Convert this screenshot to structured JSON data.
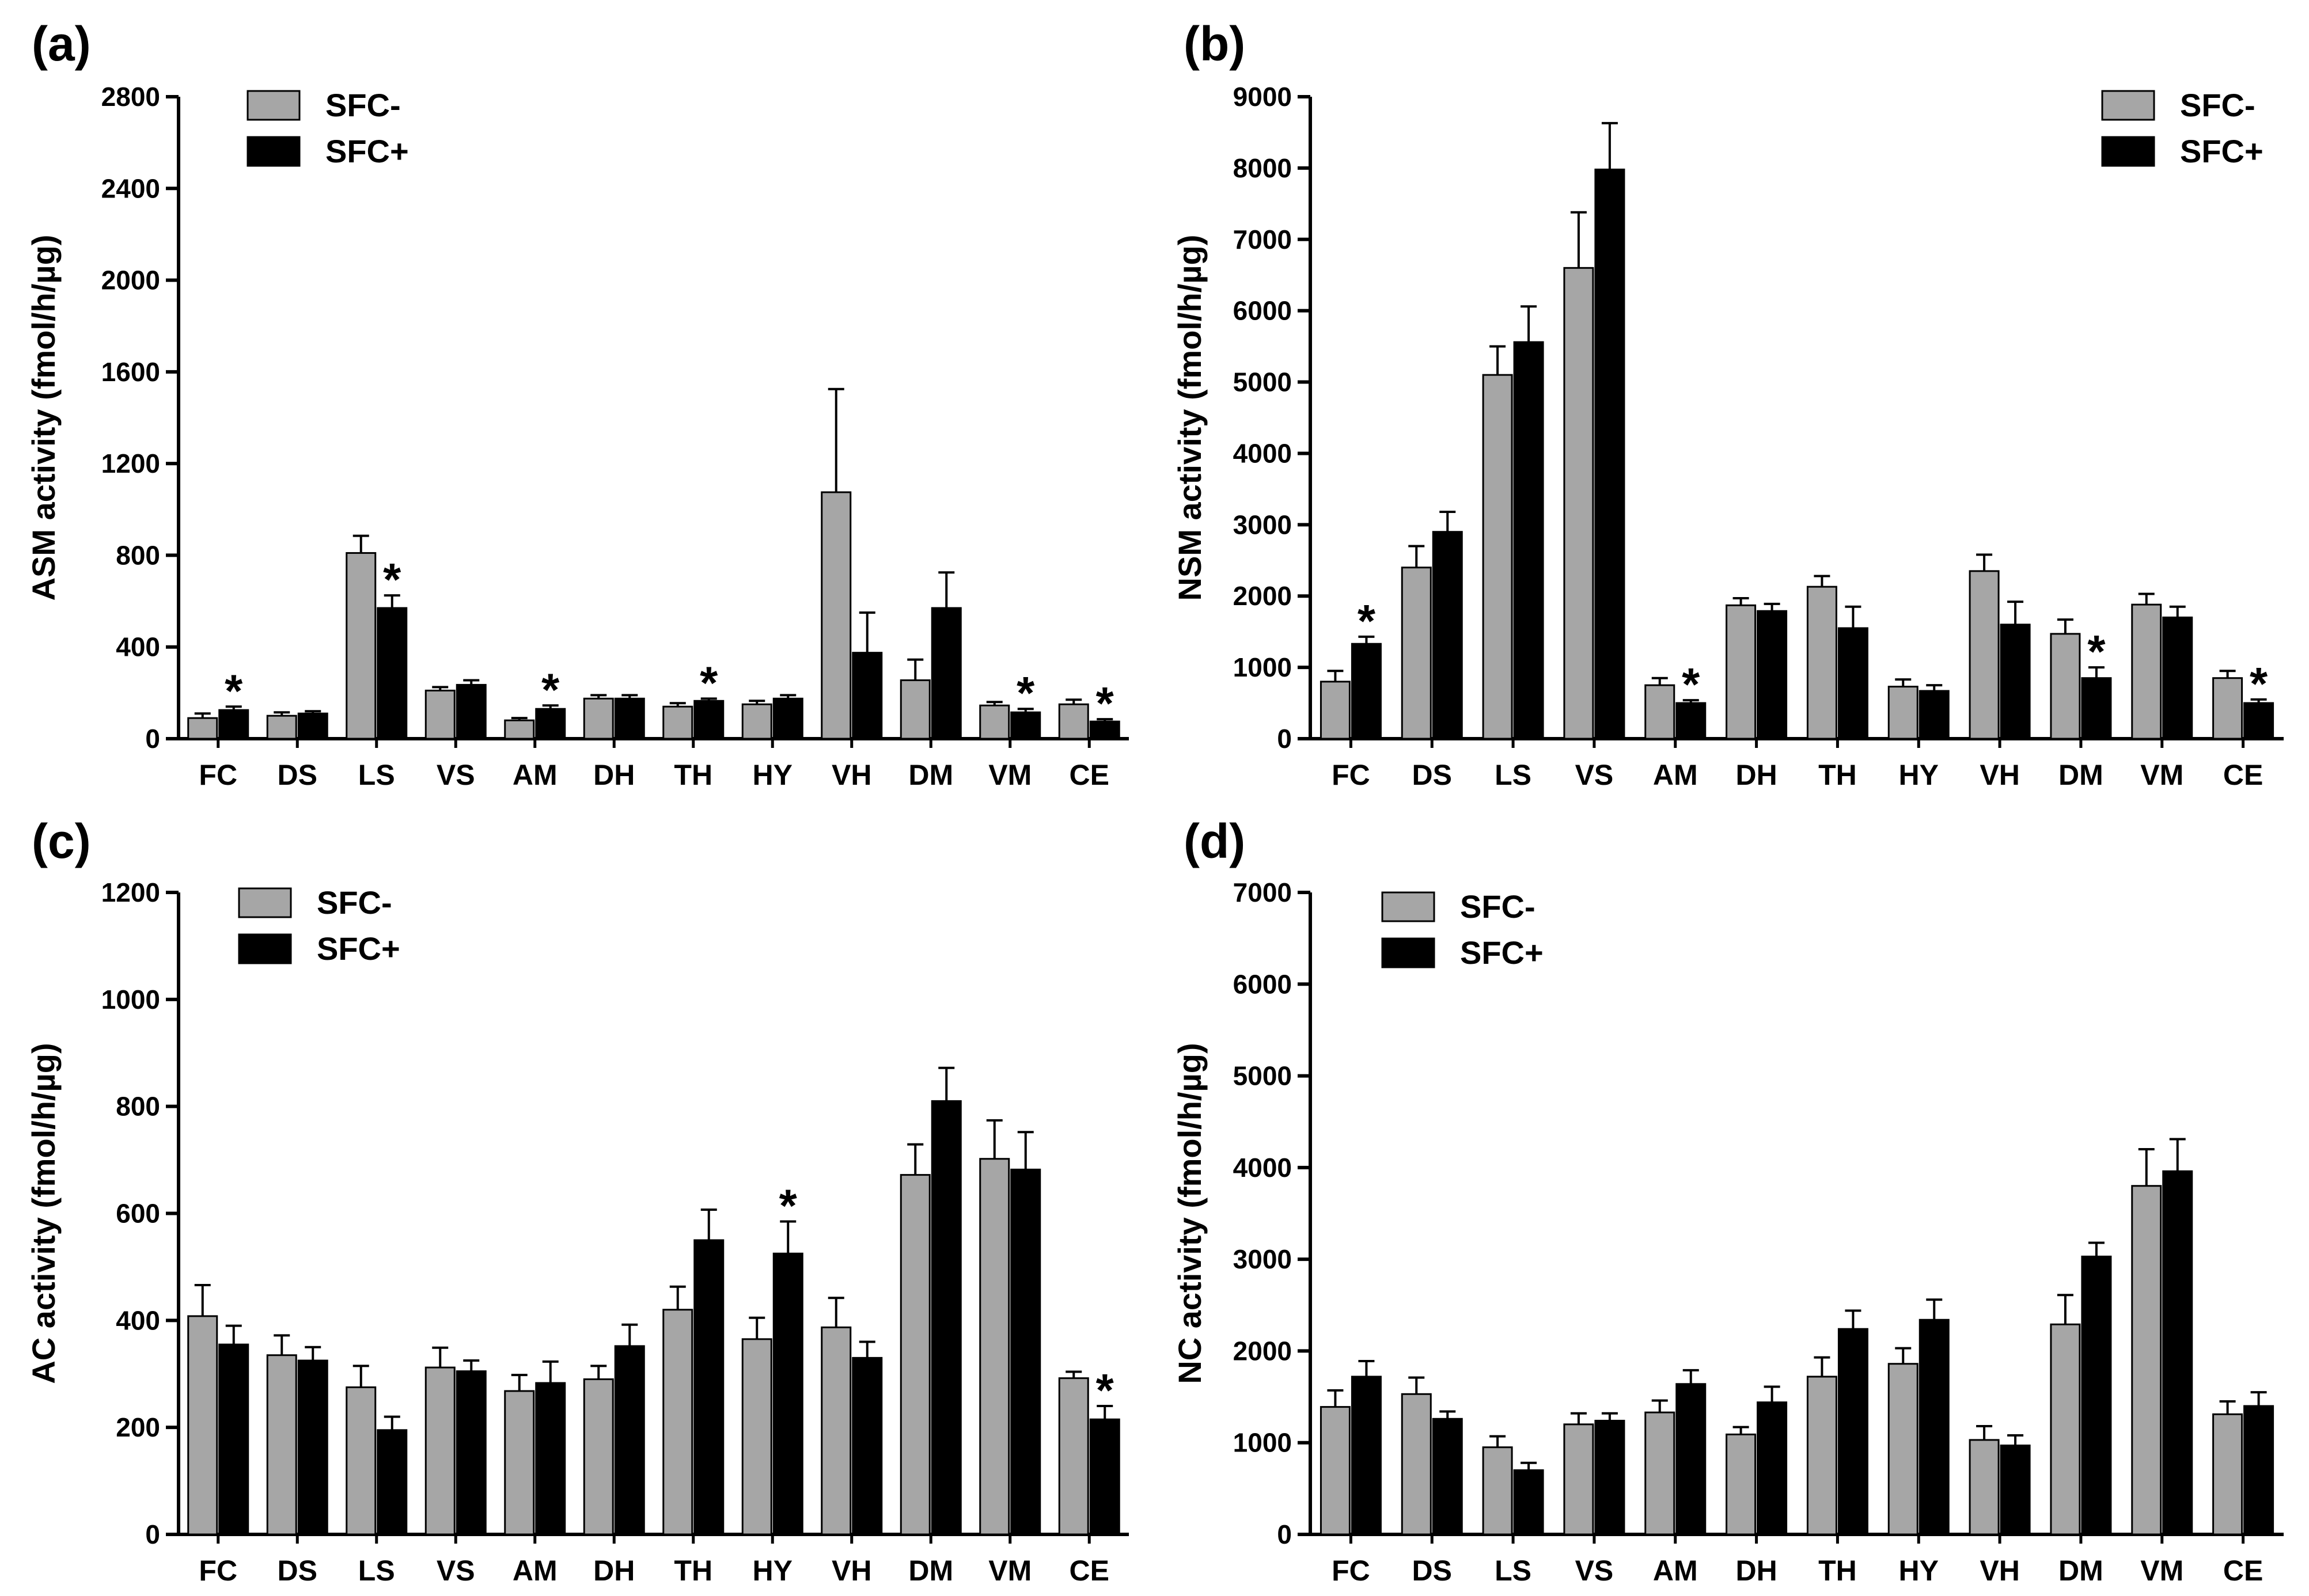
{
  "colors": {
    "sfc_minus": "#a6a6a6",
    "sfc_plus": "#000000",
    "axis": "#000000"
  },
  "chart_data": [
    {
      "type": "bar",
      "panel": "(a)",
      "title": "",
      "xlabel": "",
      "ylabel": "ASM activity  (fmol/h/µg)",
      "ylim": [
        0,
        2800
      ],
      "yticks": [
        0,
        400,
        800,
        1200,
        1600,
        2000,
        2400,
        2800
      ],
      "legend": {
        "position": "top-left",
        "entries": [
          "SFC-",
          "SFC+"
        ]
      },
      "categories": [
        "FC",
        "DS",
        "LS",
        "VS",
        "AM",
        "DH",
        "TH",
        "HY",
        "VH",
        "DM",
        "VM",
        "CE"
      ],
      "series": [
        {
          "name": "SFC-",
          "values": [
            90,
            100,
            810,
            210,
            80,
            175,
            140,
            150,
            1075,
            255,
            145,
            150
          ],
          "errors": [
            20,
            15,
            75,
            15,
            10,
            15,
            15,
            15,
            450,
            90,
            15,
            20
          ]
        },
        {
          "name": "SFC+",
          "values": [
            125,
            110,
            570,
            235,
            130,
            175,
            165,
            175,
            375,
            570,
            115,
            75
          ],
          "errors": [
            15,
            10,
            55,
            20,
            15,
            15,
            10,
            15,
            175,
            155,
            15,
            10
          ]
        }
      ],
      "significance": [
        true,
        false,
        true,
        false,
        true,
        false,
        true,
        false,
        false,
        false,
        true,
        true
      ],
      "significance_symbol": "*"
    },
    {
      "type": "bar",
      "panel": "(b)",
      "title": "",
      "xlabel": "",
      "ylabel": "NSM activity  (fmol/h/µg)",
      "ylim": [
        0,
        9000
      ],
      "yticks": [
        0,
        1000,
        2000,
        3000,
        4000,
        5000,
        6000,
        7000,
        8000,
        9000
      ],
      "legend": {
        "position": "top-right",
        "entries": [
          "SFC-",
          "SFC+"
        ]
      },
      "categories": [
        "FC",
        "DS",
        "LS",
        "VS",
        "AM",
        "DH",
        "TH",
        "HY",
        "VH",
        "DM",
        "VM",
        "CE"
      ],
      "series": [
        {
          "name": "SFC-",
          "values": [
            800,
            2400,
            5100,
            6600,
            750,
            1870,
            2130,
            730,
            2350,
            1470,
            1880,
            850
          ],
          "errors": [
            150,
            300,
            400,
            780,
            100,
            100,
            150,
            100,
            230,
            200,
            150,
            100
          ]
        },
        {
          "name": "SFC+",
          "values": [
            1330,
            2900,
            5560,
            7980,
            500,
            1790,
            1550,
            670,
            1600,
            850,
            1700,
            500
          ],
          "errors": [
            100,
            280,
            500,
            650,
            40,
            100,
            300,
            80,
            320,
            150,
            150,
            50
          ]
        }
      ],
      "significance": [
        true,
        false,
        false,
        false,
        true,
        false,
        false,
        false,
        false,
        true,
        false,
        true
      ],
      "significance_symbol": "*"
    },
    {
      "type": "bar",
      "panel": "(c)",
      "title": "",
      "xlabel": "",
      "ylabel": "AC activity  (fmol/h/µg)",
      "ylim": [
        0,
        1200
      ],
      "yticks": [
        0,
        200,
        400,
        600,
        800,
        1000,
        1200
      ],
      "legend": {
        "position": "top-left",
        "entries": [
          "SFC-",
          "SFC+"
        ]
      },
      "categories": [
        "FC",
        "DS",
        "LS",
        "VS",
        "AM",
        "DH",
        "TH",
        "HY",
        "VH",
        "DM",
        "VM",
        "CE"
      ],
      "series": [
        {
          "name": "SFC-",
          "values": [
            408,
            335,
            275,
            312,
            268,
            290,
            420,
            365,
            387,
            672,
            702,
            292
          ],
          "errors": [
            58,
            37,
            40,
            37,
            30,
            25,
            43,
            40,
            55,
            57,
            72,
            12
          ]
        },
        {
          "name": "SFC+",
          "values": [
            355,
            325,
            195,
            305,
            283,
            352,
            550,
            525,
            330,
            810,
            682,
            215
          ],
          "errors": [
            35,
            25,
            25,
            20,
            40,
            40,
            57,
            60,
            30,
            62,
            70,
            25
          ]
        }
      ],
      "significance": [
        false,
        false,
        false,
        false,
        false,
        false,
        false,
        true,
        false,
        false,
        false,
        true
      ],
      "significance_symbol": "*"
    },
    {
      "type": "bar",
      "panel": "(d)",
      "title": "",
      "xlabel": "",
      "ylabel": "NC activity  (fmol/h/µg)",
      "ylim": [
        0,
        7000
      ],
      "yticks": [
        0,
        1000,
        2000,
        3000,
        4000,
        5000,
        6000,
        7000
      ],
      "legend": {
        "position": "top-left",
        "entries": [
          "SFC-",
          "SFC+"
        ]
      },
      "categories": [
        "FC",
        "DS",
        "LS",
        "VS",
        "AM",
        "DH",
        "TH",
        "HY",
        "VH",
        "DM",
        "VM",
        "CE"
      ],
      "series": [
        {
          "name": "SFC-",
          "values": [
            1390,
            1530,
            950,
            1200,
            1330,
            1090,
            1720,
            1860,
            1030,
            2290,
            3800,
            1310
          ],
          "errors": [
            180,
            180,
            120,
            120,
            130,
            80,
            210,
            170,
            150,
            320,
            400,
            140
          ]
        },
        {
          "name": "SFC+",
          "values": [
            1720,
            1260,
            700,
            1240,
            1640,
            1440,
            2240,
            2340,
            970,
            3030,
            3960,
            1400
          ],
          "errors": [
            170,
            80,
            80,
            80,
            150,
            170,
            200,
            220,
            110,
            150,
            350,
            150
          ]
        }
      ],
      "significance": [
        false,
        false,
        false,
        false,
        false,
        false,
        false,
        false,
        false,
        false,
        false,
        false
      ],
      "significance_symbol": "*"
    }
  ]
}
